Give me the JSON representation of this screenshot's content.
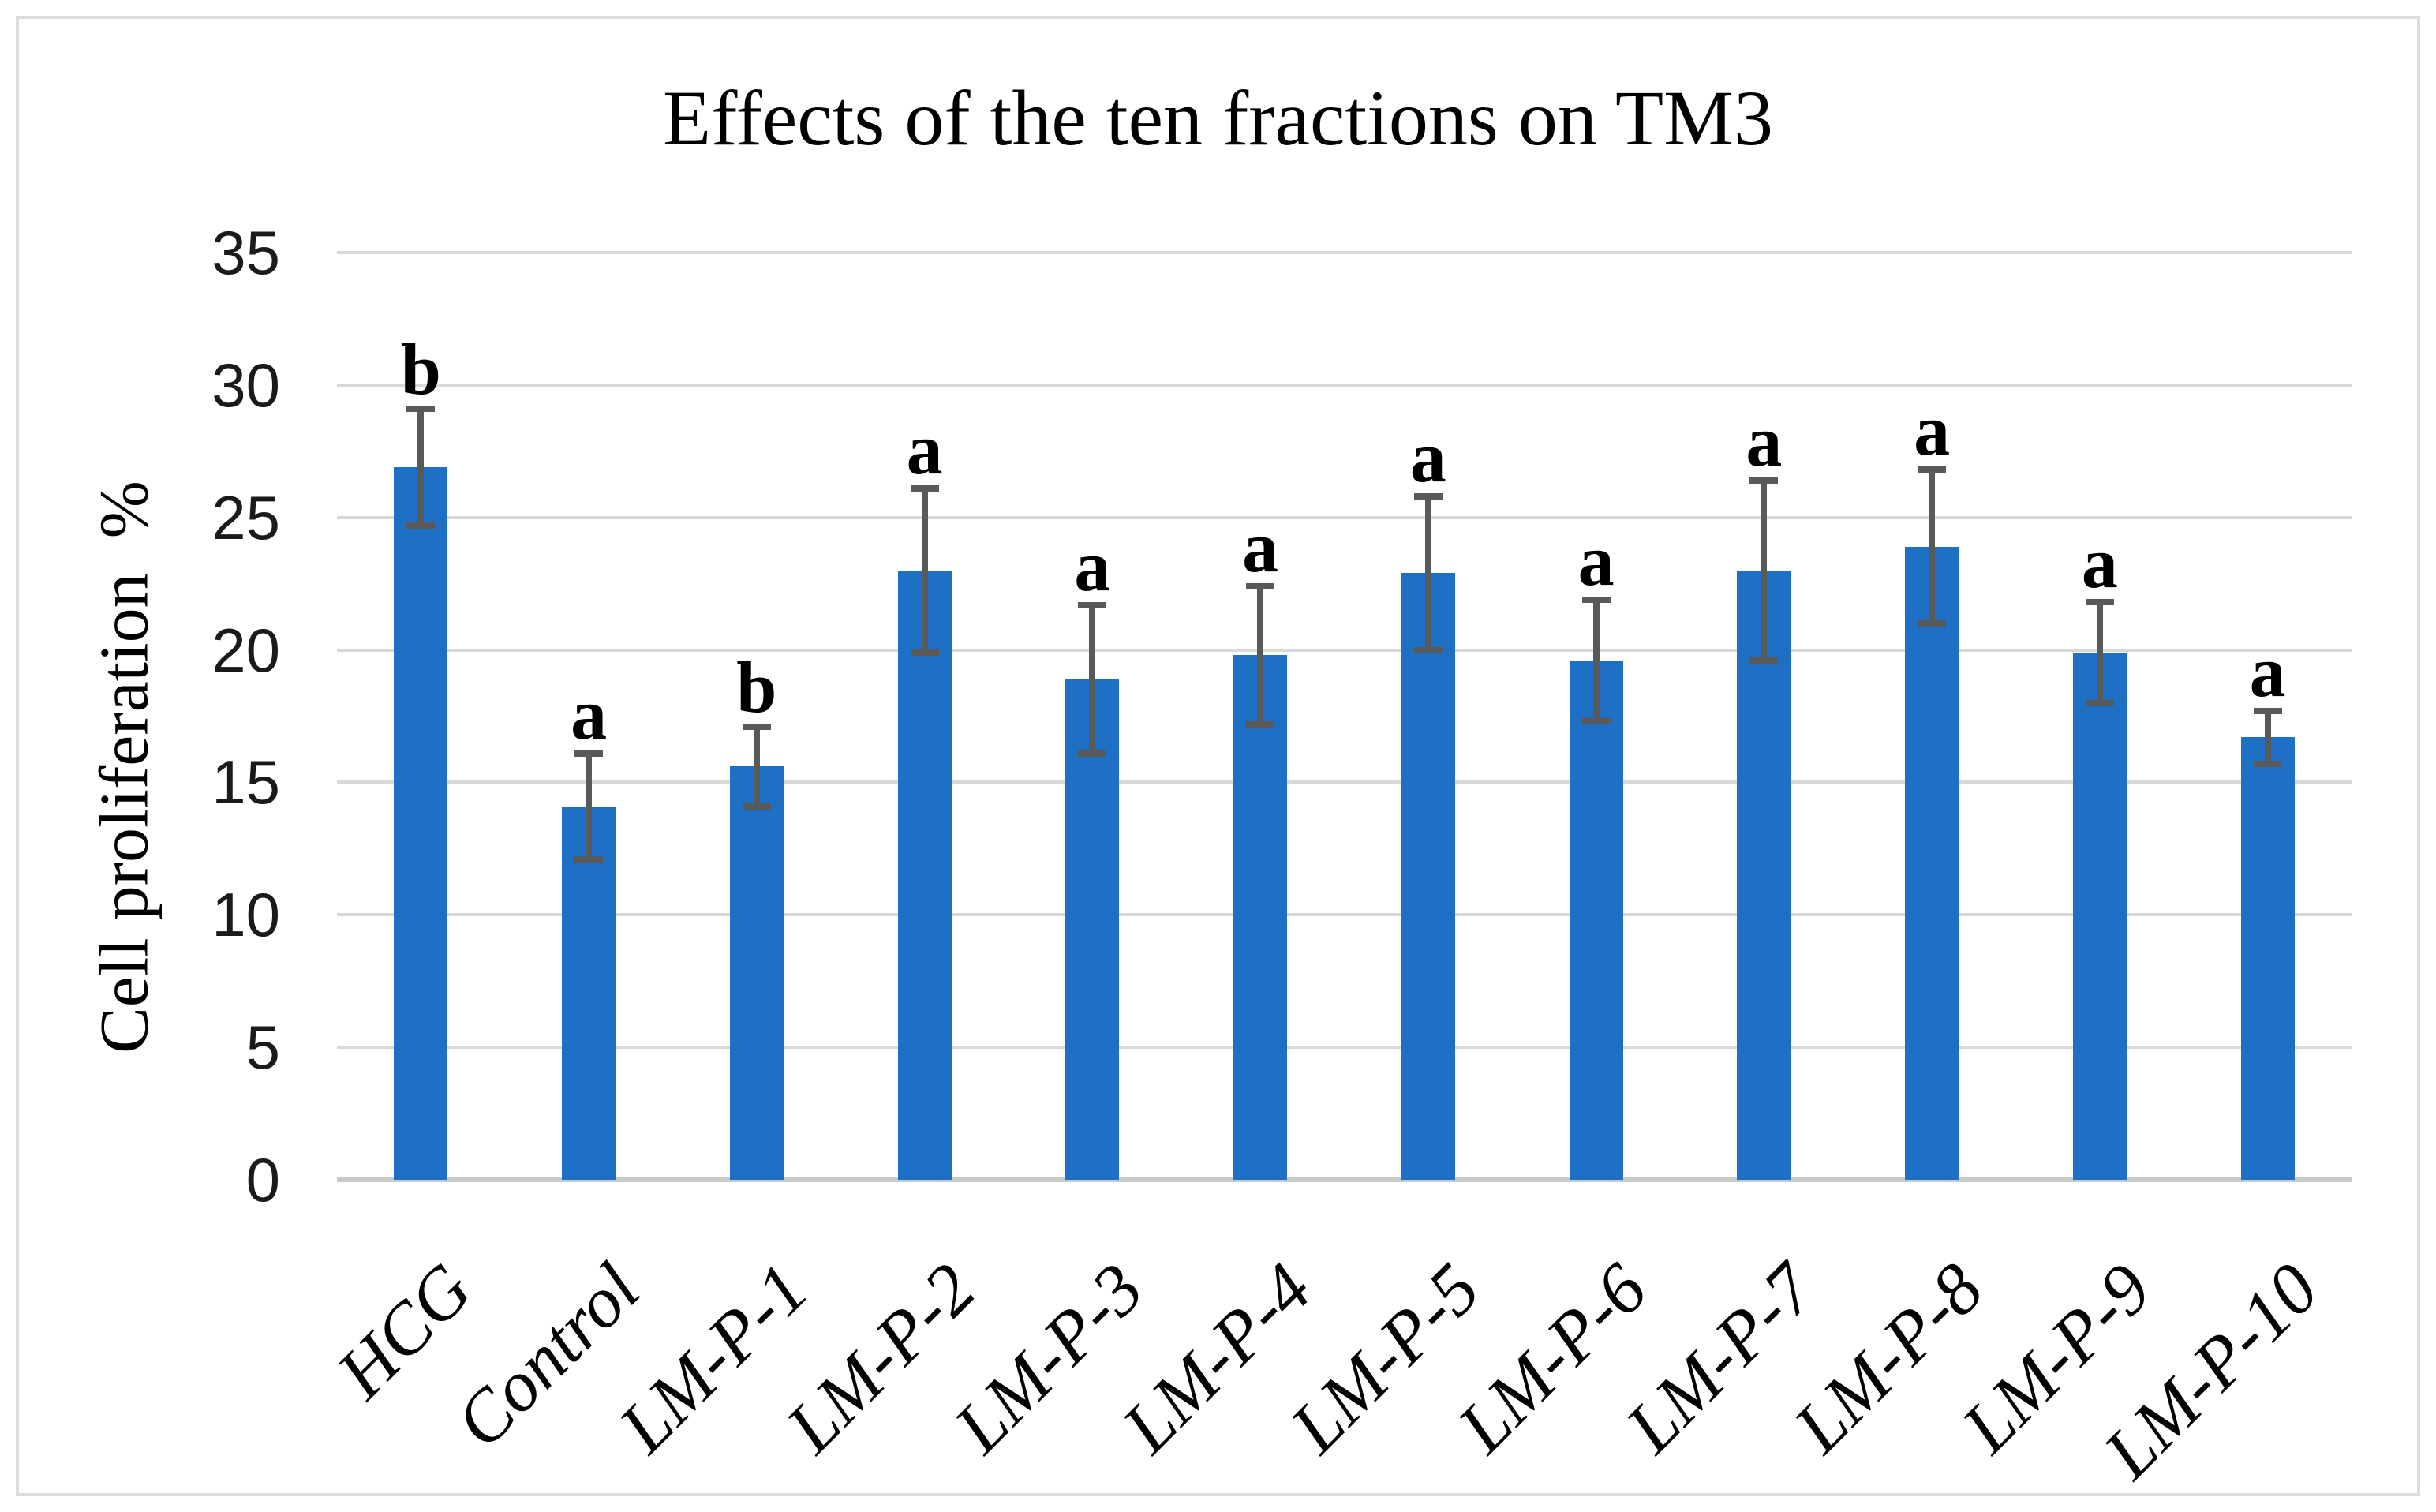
{
  "figure": {
    "background": "#ffffff",
    "border_color": "#dcdcdc"
  },
  "chart_data": {
    "type": "bar",
    "title": "Effects of the ten fractions on TM3",
    "ylabel": "Cell proliferation  %",
    "xlabel": "",
    "categories": [
      "HCG",
      "Control",
      "LM-P-1",
      "LM-P-2",
      "LM-P-3",
      "LM-P-4",
      "LM-P-5",
      "LM-P-6",
      "LM-P-7",
      "LM-P-8",
      "LM-P-9",
      "LM-P-10"
    ],
    "values": [
      26.9,
      14.1,
      15.6,
      23.0,
      18.9,
      19.8,
      22.9,
      19.6,
      23.0,
      23.9,
      19.9,
      16.7
    ],
    "error_bars": [
      2.2,
      2.0,
      1.5,
      3.1,
      2.8,
      2.6,
      2.9,
      2.3,
      3.4,
      2.9,
      1.9,
      1.0
    ],
    "significance_letters": [
      "b",
      "a",
      "b",
      "a",
      "a",
      "a",
      "a",
      "a",
      "a",
      "a",
      "a",
      "a"
    ],
    "yticks": [
      0,
      5,
      10,
      15,
      20,
      25,
      30,
      35
    ],
    "ylim": [
      0,
      35
    ],
    "grid": true,
    "legend": "none",
    "bar_color": "#1e70c4",
    "error_bar_color": "#595959",
    "gridline_color": "#d9d9d9",
    "axis_line_color": "#c9c9c9"
  }
}
